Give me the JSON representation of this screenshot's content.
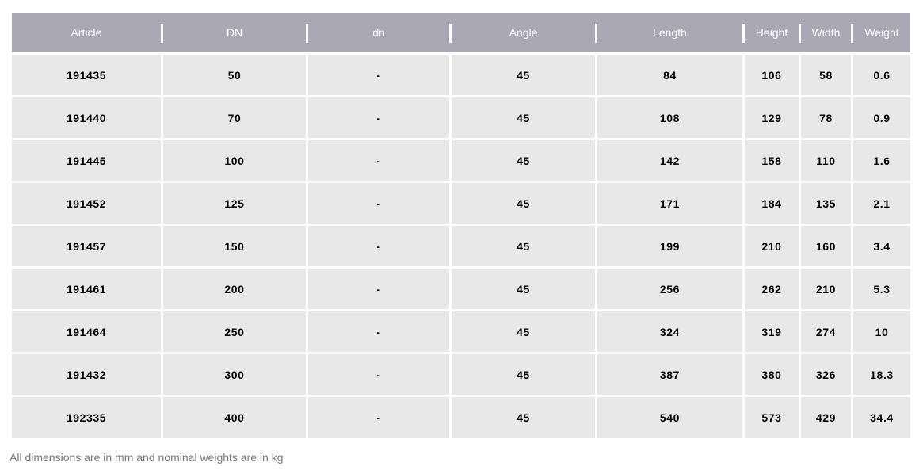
{
  "table": {
    "headers": [
      "Article",
      "DN",
      "dn",
      "Angle",
      "Length",
      "Height",
      "Width",
      "Weight"
    ],
    "rows": [
      [
        "191435",
        "50",
        "-",
        "45",
        "84",
        "106",
        "58",
        "0.6"
      ],
      [
        "191440",
        "70",
        "-",
        "45",
        "108",
        "129",
        "78",
        "0.9"
      ],
      [
        "191445",
        "100",
        "-",
        "45",
        "142",
        "158",
        "110",
        "1.6"
      ],
      [
        "191452",
        "125",
        "-",
        "45",
        "171",
        "184",
        "135",
        "2.1"
      ],
      [
        "191457",
        "150",
        "-",
        "45",
        "199",
        "210",
        "160",
        "3.4"
      ],
      [
        "191461",
        "200",
        "-",
        "45",
        "256",
        "262",
        "210",
        "5.3"
      ],
      [
        "191464",
        "250",
        "-",
        "45",
        "324",
        "319",
        "274",
        "10"
      ],
      [
        "191432",
        "300",
        "-",
        "45",
        "387",
        "380",
        "326",
        "18.3"
      ],
      [
        "192335",
        "400",
        "-",
        "45",
        "540",
        "573",
        "429",
        "34.4"
      ]
    ]
  },
  "footnote": "All dimensions are in mm and nominal weights are in kg",
  "colors": {
    "header_bg": "#aba8b5",
    "cell_bg": "#e8e8e8",
    "footnote": "#777777"
  }
}
